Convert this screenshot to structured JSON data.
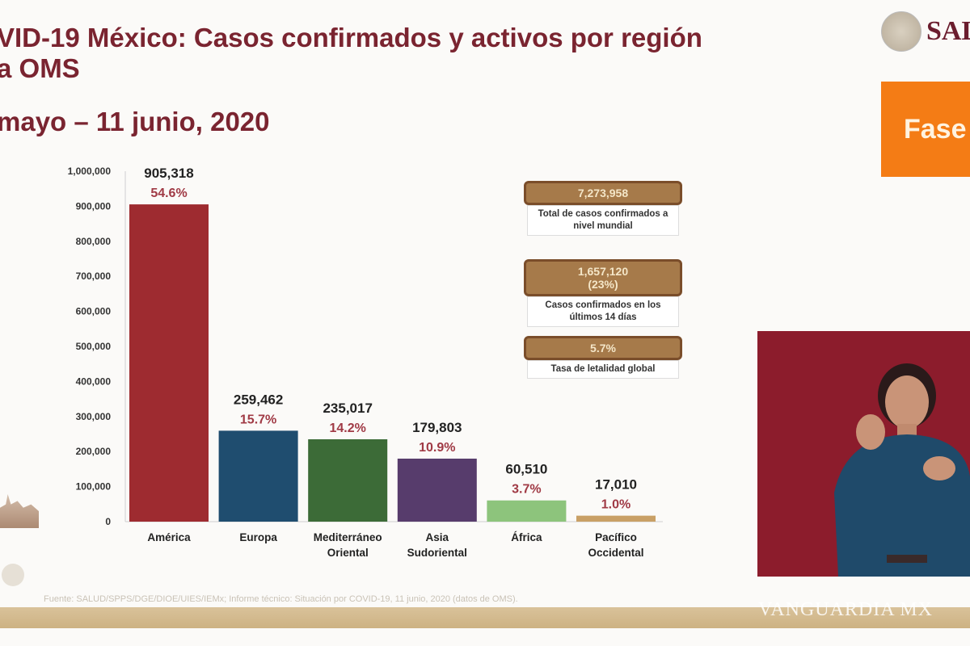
{
  "header": {
    "title": "VID-19 México: Casos confirmados y activos por región\na OMS",
    "subtitle": "mayo – 11 junio, 2020",
    "logo_text": "SAL",
    "phase_label": "Fase"
  },
  "chart_data": {
    "type": "bar",
    "categories": [
      "América",
      "Europa",
      "Mediterráneo Oriental",
      "Asia Sudoriental",
      "África",
      "Pacífico Occidental"
    ],
    "category_lines": [
      [
        "América"
      ],
      [
        "Europa"
      ],
      [
        "Mediterráneo",
        "Oriental"
      ],
      [
        "Asia",
        "Sudoriental"
      ],
      [
        "África"
      ],
      [
        "Pacífico",
        "Occidental"
      ]
    ],
    "values": [
      905318,
      259462,
      235017,
      179803,
      60510,
      17010
    ],
    "value_labels": [
      "905,318",
      "259,462",
      "235,017",
      "179,803",
      "60,510",
      "17,010"
    ],
    "percent_labels": [
      "54.6%",
      "15.7%",
      "14.2%",
      "10.9%",
      "3.7%",
      "1.0%"
    ],
    "colors": [
      "#9e2b30",
      "#1f4d6f",
      "#3c6b37",
      "#573c6c",
      "#8dc47c",
      "#c9a066"
    ],
    "ylim": [
      0,
      1000000
    ],
    "yticks": [
      "0",
      "100,000",
      "200,000",
      "300,000",
      "400,000",
      "500,000",
      "600,000",
      "700,000",
      "800,000",
      "900,000",
      "1,000,000"
    ],
    "grid": false,
    "legend": "none"
  },
  "stats": [
    {
      "value": "7,273,958",
      "label": "Total de casos confirmados a nivel mundial"
    },
    {
      "value": "1,657,120",
      "sub": "(23%)",
      "label": "Casos confirmados en los últimos 14 días"
    },
    {
      "value": "5.7%",
      "label": "Tasa de letalidad global"
    }
  ],
  "footer": {
    "source": "Fuente: SALUD/SPPS/DGE/DIOE/UIES/IEMx; Informe técnico: Situación por COVID-19, 11 junio, 2020 (datos de OMS).",
    "watermark": "VANGUARDIA MX"
  },
  "colors": {
    "title": "#7a2430",
    "phase": "#f47c15",
    "stat_box": "#a67a4a",
    "interpreter_bg": "#8c1c2c"
  }
}
